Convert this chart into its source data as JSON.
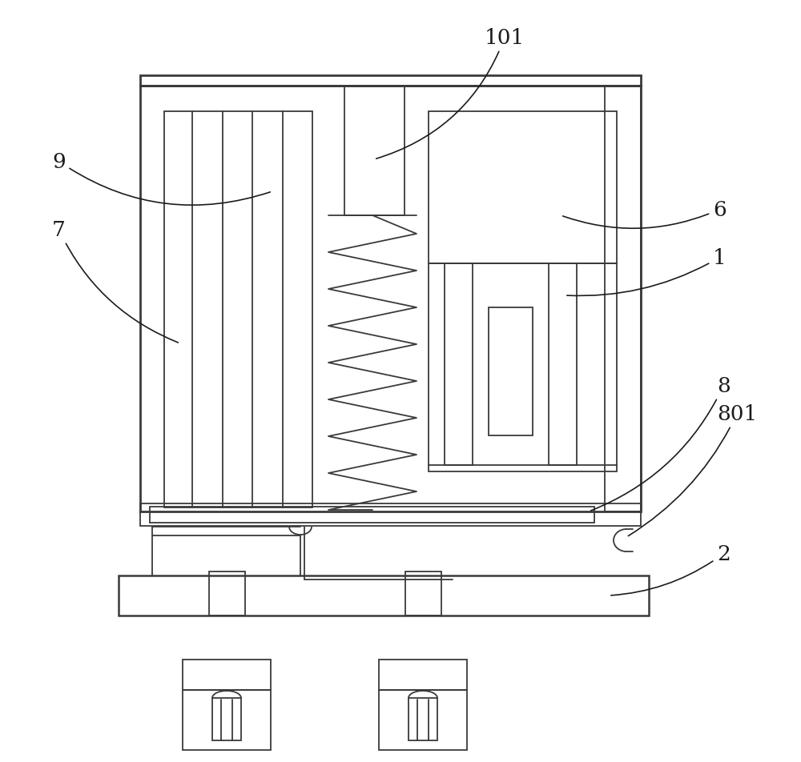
{
  "bg_color": "#ffffff",
  "line_color": "#3a3a3a",
  "lw_main": 1.8,
  "lw_inner": 1.3
}
